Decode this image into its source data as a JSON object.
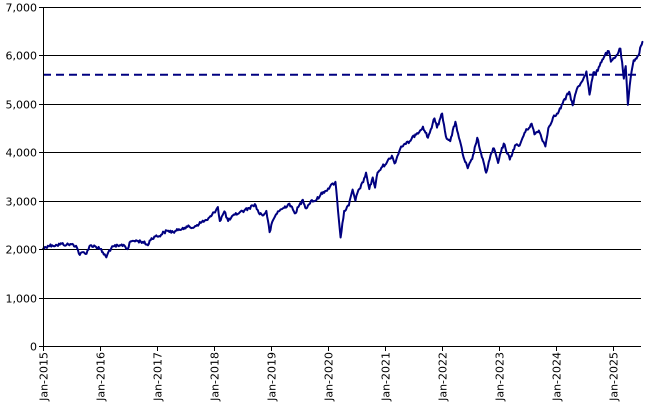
{
  "chart_data": {
    "type": "line",
    "title": "",
    "xlabel": "",
    "ylabel": "",
    "ylim": [
      0,
      7000
    ],
    "yticks": [
      0,
      1000,
      2000,
      3000,
      4000,
      5000,
      6000,
      7000
    ],
    "ytick_labels": [
      "0",
      "1,000",
      "2,000",
      "3,000",
      "4,000",
      "5,000",
      "6,000",
      "7,000"
    ],
    "x_start": "2015-01",
    "x_end": "2025-07",
    "xticks": [
      "2015-01",
      "2016-01",
      "2017-01",
      "2018-01",
      "2019-01",
      "2020-01",
      "2021-01",
      "2022-01",
      "2023-01",
      "2024-01",
      "2025-01"
    ],
    "xtick_labels": [
      "Jan-2015",
      "Jan-2016",
      "Jan-2017",
      "Jan-2018",
      "Jan-2019",
      "Jan-2020",
      "Jan-2021",
      "Jan-2022",
      "Jan-2023",
      "Jan-2024",
      "Jan-2025"
    ],
    "grid": "horizontal",
    "legend": "none",
    "line_color": "#000080",
    "reference_line": {
      "value": 5600,
      "style": "dashed",
      "color": "#000080"
    },
    "series": [
      {
        "points": [
          [
            "2015-01-02",
            2010
          ],
          [
            "2015-02-01",
            2070
          ],
          [
            "2015-03-01",
            2080
          ],
          [
            "2015-04-01",
            2080
          ],
          [
            "2015-05-01",
            2110
          ],
          [
            "2015-06-01",
            2090
          ],
          [
            "2015-07-01",
            2100
          ],
          [
            "2015-08-01",
            2070
          ],
          [
            "2015-08-25",
            1880
          ],
          [
            "2015-09-15",
            1940
          ],
          [
            "2015-10-01",
            1900
          ],
          [
            "2015-11-01",
            2080
          ],
          [
            "2015-12-01",
            2060
          ],
          [
            "2016-01-04",
            2000
          ],
          [
            "2016-02-11",
            1830
          ],
          [
            "2016-03-01",
            1980
          ],
          [
            "2016-04-01",
            2060
          ],
          [
            "2016-05-01",
            2060
          ],
          [
            "2016-06-01",
            2090
          ],
          [
            "2016-06-27",
            2000
          ],
          [
            "2016-07-15",
            2160
          ],
          [
            "2016-08-01",
            2170
          ],
          [
            "2016-09-01",
            2170
          ],
          [
            "2016-10-01",
            2150
          ],
          [
            "2016-11-04",
            2080
          ],
          [
            "2016-11-15",
            2180
          ],
          [
            "2016-12-15",
            2260
          ],
          [
            "2017-01-15",
            2270
          ],
          [
            "2017-02-15",
            2350
          ],
          [
            "2017-03-15",
            2380
          ],
          [
            "2017-04-15",
            2350
          ],
          [
            "2017-05-15",
            2390
          ],
          [
            "2017-06-15",
            2440
          ],
          [
            "2017-07-15",
            2460
          ],
          [
            "2017-08-15",
            2440
          ],
          [
            "2017-09-15",
            2500
          ],
          [
            "2017-10-15",
            2560
          ],
          [
            "2017-11-15",
            2600
          ],
          [
            "2017-12-15",
            2680
          ],
          [
            "2018-01-26",
            2870
          ],
          [
            "2018-02-08",
            2580
          ],
          [
            "2018-03-09",
            2780
          ],
          [
            "2018-04-02",
            2580
          ],
          [
            "2018-05-15",
            2710
          ],
          [
            "2018-06-15",
            2760
          ],
          [
            "2018-07-15",
            2800
          ],
          [
            "2018-08-15",
            2850
          ],
          [
            "2018-09-20",
            2930
          ],
          [
            "2018-10-15",
            2750
          ],
          [
            "2018-11-15",
            2700
          ],
          [
            "2018-12-03",
            2790
          ],
          [
            "2018-12-24",
            2350
          ],
          [
            "2019-01-15",
            2600
          ],
          [
            "2019-02-15",
            2780
          ],
          [
            "2019-03-15",
            2830
          ],
          [
            "2019-04-30",
            2940
          ],
          [
            "2019-06-03",
            2740
          ],
          [
            "2019-07-25",
            3020
          ],
          [
            "2019-08-15",
            2840
          ],
          [
            "2019-09-15",
            3000
          ],
          [
            "2019-10-15",
            3000
          ],
          [
            "2019-11-15",
            3120
          ],
          [
            "2019-12-15",
            3200
          ],
          [
            "2020-01-15",
            3290
          ],
          [
            "2020-02-19",
            3390
          ],
          [
            "2020-03-23",
            2240
          ],
          [
            "2020-04-15",
            2790
          ],
          [
            "2020-05-15",
            2900
          ],
          [
            "2020-06-08",
            3230
          ],
          [
            "2020-06-26",
            3000
          ],
          [
            "2020-07-15",
            3220
          ],
          [
            "2020-08-15",
            3380
          ],
          [
            "2020-09-02",
            3580
          ],
          [
            "2020-09-23",
            3240
          ],
          [
            "2020-10-15",
            3480
          ],
          [
            "2020-10-30",
            3270
          ],
          [
            "2020-11-15",
            3580
          ],
          [
            "2020-12-15",
            3700
          ],
          [
            "2021-01-15",
            3800
          ],
          [
            "2021-02-15",
            3930
          ],
          [
            "2021-03-04",
            3770
          ],
          [
            "2021-04-15",
            4120
          ],
          [
            "2021-05-15",
            4170
          ],
          [
            "2021-06-15",
            4240
          ],
          [
            "2021-07-15",
            4370
          ],
          [
            "2021-08-15",
            4450
          ],
          [
            "2021-09-02",
            4530
          ],
          [
            "2021-10-04",
            4300
          ],
          [
            "2021-11-15",
            4700
          ],
          [
            "2021-12-01",
            4510
          ],
          [
            "2022-01-03",
            4800
          ],
          [
            "2022-01-27",
            4330
          ],
          [
            "2022-02-24",
            4230
          ],
          [
            "2022-03-29",
            4630
          ],
          [
            "2022-04-15",
            4390
          ],
          [
            "2022-05-20",
            3900
          ],
          [
            "2022-06-16",
            3670
          ],
          [
            "2022-07-15",
            3860
          ],
          [
            "2022-08-16",
            4300
          ],
          [
            "2022-09-15",
            3900
          ],
          [
            "2022-10-12",
            3580
          ],
          [
            "2022-11-15",
            3990
          ],
          [
            "2022-12-01",
            4080
          ],
          [
            "2022-12-28",
            3780
          ],
          [
            "2023-01-15",
            4000
          ],
          [
            "2023-02-02",
            4180
          ],
          [
            "2023-03-13",
            3850
          ],
          [
            "2023-04-15",
            4140
          ],
          [
            "2023-05-15",
            4140
          ],
          [
            "2023-06-15",
            4400
          ],
          [
            "2023-07-31",
            4590
          ],
          [
            "2023-08-18",
            4370
          ],
          [
            "2023-09-15",
            4450
          ],
          [
            "2023-10-27",
            4120
          ],
          [
            "2023-11-15",
            4500
          ],
          [
            "2023-12-15",
            4720
          ],
          [
            "2024-01-15",
            4800
          ],
          [
            "2024-02-15",
            5010
          ],
          [
            "2024-03-28",
            5250
          ],
          [
            "2024-04-19",
            4970
          ],
          [
            "2024-05-15",
            5300
          ],
          [
            "2024-06-15",
            5450
          ],
          [
            "2024-07-16",
            5670
          ],
          [
            "2024-08-05",
            5190
          ],
          [
            "2024-08-30",
            5650
          ],
          [
            "2024-09-15",
            5620
          ],
          [
            "2024-10-15",
            5850
          ],
          [
            "2024-11-11",
            6000
          ],
          [
            "2024-12-06",
            6090
          ],
          [
            "2024-12-20",
            5870
          ],
          [
            "2025-01-15",
            5950
          ],
          [
            "2025-02-19",
            6140
          ],
          [
            "2025-03-13",
            5520
          ],
          [
            "2025-03-25",
            5780
          ],
          [
            "2025-04-08",
            4980
          ],
          [
            "2025-04-25",
            5520
          ],
          [
            "2025-05-15",
            5900
          ],
          [
            "2025-06-15",
            6000
          ],
          [
            "2025-07-01",
            6200
          ],
          [
            "2025-07-10",
            6280
          ]
        ]
      }
    ]
  }
}
